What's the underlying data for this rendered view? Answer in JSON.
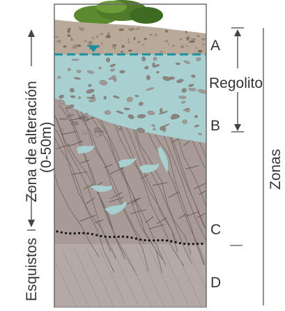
{
  "labels": {
    "zone_a": "A",
    "zone_b": "B",
    "zone_c": "C",
    "zone_d": "D",
    "regolith": "Regolito",
    "zones": "Zonas",
    "weathering_zone": "Zona de alteración",
    "weathering_depth": "(0-50m)",
    "schist": "Esquistos"
  },
  "colors": {
    "topsoil": "#b8a998",
    "saturated_regolith": "#a8d0d0",
    "rock": "#a89a96",
    "water_table": "#1b8ea0",
    "vegetation": "#4f7a2a",
    "lines": "#555555"
  },
  "icons": {
    "water_table_marker": "inverted-triangle"
  }
}
